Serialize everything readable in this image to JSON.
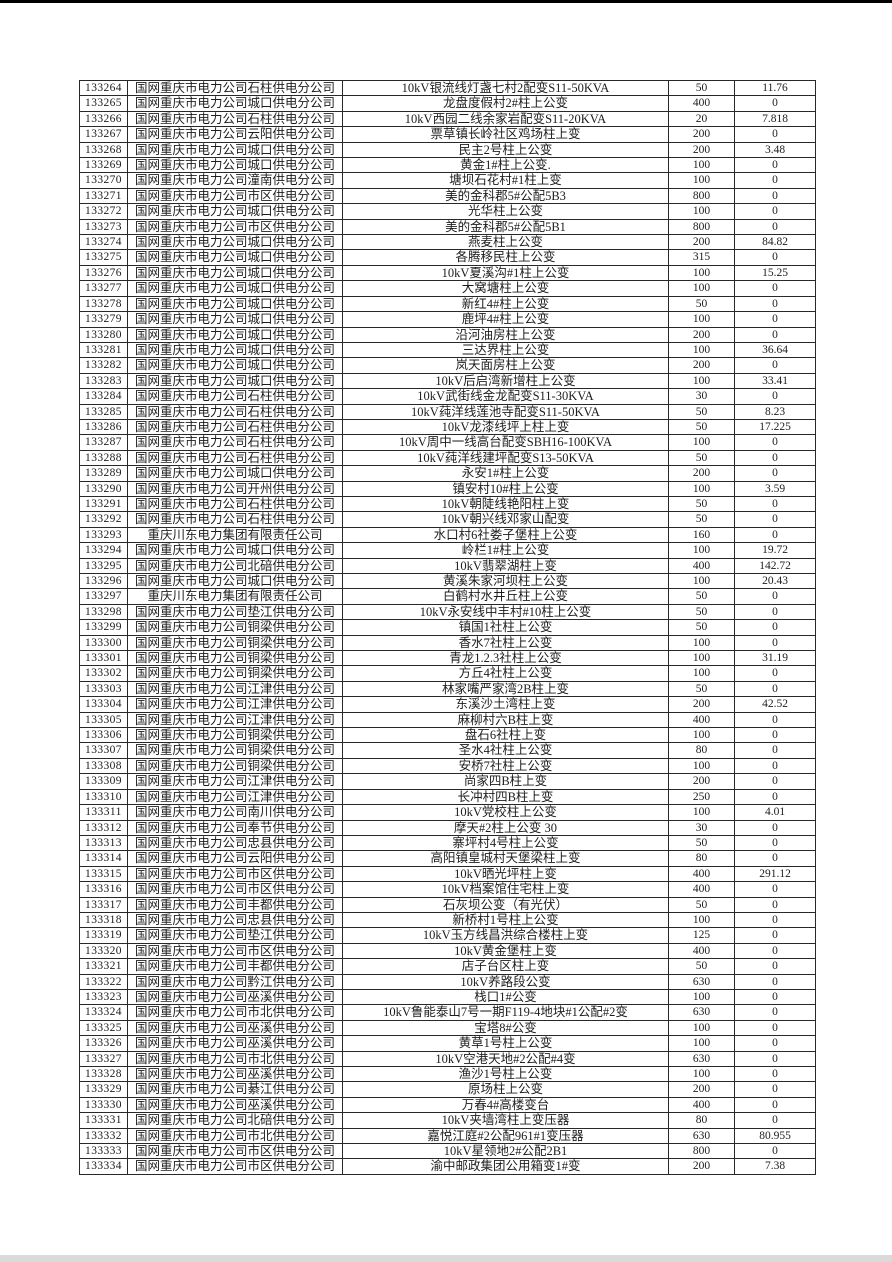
{
  "page": {
    "background": "#ffffff",
    "scan_top_edge_color": "#000000",
    "scan_bottom_strip_color": "#dadada",
    "text_color": "#1d1d1d",
    "grid_color": "#282828"
  },
  "table": {
    "columns": [
      {
        "key": "id",
        "name": "record-id-cell"
      },
      {
        "key": "company",
        "name": "company-name-cell"
      },
      {
        "key": "description",
        "name": "transformer-name-cell"
      },
      {
        "key": "capacity",
        "name": "capacity-kva-cell"
      },
      {
        "key": "value",
        "name": "reading-value-cell"
      }
    ],
    "rows": [
      [
        "133264",
        "国网重庆市电力公司石柱供电分公司",
        "10kV银流线灯盏七村2配变S11-50KVA",
        "50",
        "11.76"
      ],
      [
        "133265",
        "国网重庆市电力公司城口供电分公司",
        "龙盘度假村2#柱上公变",
        "400",
        "0"
      ],
      [
        "133266",
        "国网重庆市电力公司石柱供电分公司",
        "10kV西园二线余家岩配变S11-20KVA",
        "20",
        "7.818"
      ],
      [
        "133267",
        "国网重庆市电力公司云阳供电分公司",
        "票草镇长岭社区鸡场柱上变",
        "200",
        "0"
      ],
      [
        "133268",
        "国网重庆市电力公司城口供电分公司",
        "民主2号柱上公变",
        "200",
        "3.48"
      ],
      [
        "133269",
        "国网重庆市电力公司城口供电分公司",
        "黄金1#柱上公变.",
        "100",
        "0"
      ],
      [
        "133270",
        "国网重庆市电力公司潼南供电分公司",
        "塘坝石花村#1柱上变",
        "100",
        "0"
      ],
      [
        "133271",
        "国网重庆市电力公司市区供电分公司",
        "美的金科郡5#公配5B3",
        "800",
        "0"
      ],
      [
        "133272",
        "国网重庆市电力公司城口供电分公司",
        "光华柱上公变",
        "100",
        "0"
      ],
      [
        "133273",
        "国网重庆市电力公司市区供电分公司",
        "美的金科郡5#公配5B1",
        "800",
        "0"
      ],
      [
        "133274",
        "国网重庆市电力公司城口供电分公司",
        "燕麦柱上公变",
        "200",
        "84.82"
      ],
      [
        "133275",
        "国网重庆市电力公司城口供电分公司",
        "各腾移民柱上公变",
        "315",
        "0"
      ],
      [
        "133276",
        "国网重庆市电力公司城口供电分公司",
        "10kV夏溪沟#1柱上公变",
        "100",
        "15.25"
      ],
      [
        "133277",
        "国网重庆市电力公司城口供电分公司",
        "大窝塘柱上公变",
        "100",
        "0"
      ],
      [
        "133278",
        "国网重庆市电力公司城口供电分公司",
        "新红4#柱上公变",
        "50",
        "0"
      ],
      [
        "133279",
        "国网重庆市电力公司城口供电分公司",
        "鹿坪4#柱上公变",
        "100",
        "0"
      ],
      [
        "133280",
        "国网重庆市电力公司城口供电分公司",
        "沿河油房柱上公变",
        "200",
        "0"
      ],
      [
        "133281",
        "国网重庆市电力公司城口供电分公司",
        "三达界柱上公变",
        "100",
        "36.64"
      ],
      [
        "133282",
        "国网重庆市电力公司城口供电分公司",
        "岚天面房柱上公变",
        "200",
        "0"
      ],
      [
        "133283",
        "国网重庆市电力公司城口供电分公司",
        "10kV后启湾新增柱上公变",
        "100",
        "33.41"
      ],
      [
        "133284",
        "国网重庆市电力公司石柱供电分公司",
        "10kV武街线金龙配变S11-30KVA",
        "30",
        "0"
      ],
      [
        "133285",
        "国网重庆市电力公司石柱供电分公司",
        "10kV莼洋线莲池寺配变S11-50KVA",
        "50",
        "8.23"
      ],
      [
        "133286",
        "国网重庆市电力公司石柱供电分公司",
        "10kV龙漆线坪上柱上变",
        "50",
        "17.225"
      ],
      [
        "133287",
        "国网重庆市电力公司石柱供电分公司",
        "10kV周中一线高台配变SBH16-100KVA",
        "100",
        "0"
      ],
      [
        "133288",
        "国网重庆市电力公司石柱供电分公司",
        "10kV莼洋线建坪配变S13-50KVA",
        "50",
        "0"
      ],
      [
        "133289",
        "国网重庆市电力公司城口供电分公司",
        "永安1#柱上公变",
        "200",
        "0"
      ],
      [
        "133290",
        "国网重庆市电力公司开州供电分公司",
        "镇安村10#柱上公变",
        "100",
        "3.59"
      ],
      [
        "133291",
        "国网重庆市电力公司石柱供电分公司",
        "10kV朝陡线艳阳柱上变",
        "50",
        "0"
      ],
      [
        "133292",
        "国网重庆市电力公司石柱供电分公司",
        "10kV朝兴线邓家山配变",
        "50",
        "0"
      ],
      [
        "133293",
        "重庆川东电力集团有限责任公司",
        "水口村6社娄子堡柱上公变",
        "160",
        "0"
      ],
      [
        "133294",
        "国网重庆市电力公司城口供电分公司",
        "岭栏1#柱上公变",
        "100",
        "19.72"
      ],
      [
        "133295",
        "国网重庆市电力公司北碚供电分公司",
        "10kV翡翠湖柱上变",
        "400",
        "142.72"
      ],
      [
        "133296",
        "国网重庆市电力公司城口供电分公司",
        "黄溪朱家河坝柱上公变",
        "100",
        "20.43"
      ],
      [
        "133297",
        "重庆川东电力集团有限责任公司",
        "白鹤村水井丘柱上公变",
        "50",
        "0"
      ],
      [
        "133298",
        "国网重庆市电力公司垫江供电分公司",
        "10kV永安线中丰村#10柱上公变",
        "50",
        "0"
      ],
      [
        "133299",
        "国网重庆市电力公司铜梁供电分公司",
        "镇国1社柱上公变",
        "50",
        "0"
      ],
      [
        "133300",
        "国网重庆市电力公司铜梁供电分公司",
        "香水7社柱上公变",
        "100",
        "0"
      ],
      [
        "133301",
        "国网重庆市电力公司铜梁供电分公司",
        "青龙1.2.3社柱上公变",
        "100",
        "31.19"
      ],
      [
        "133302",
        "国网重庆市电力公司铜梁供电分公司",
        "方丘4社柱上公变",
        "100",
        "0"
      ],
      [
        "133303",
        "国网重庆市电力公司江津供电分公司",
        "林家嘴严家湾2B柱上变",
        "50",
        "0"
      ],
      [
        "133304",
        "国网重庆市电力公司江津供电分公司",
        "东溪沙土湾柱上变",
        "200",
        "42.52"
      ],
      [
        "133305",
        "国网重庆市电力公司江津供电分公司",
        "麻柳村六B柱上变",
        "400",
        "0"
      ],
      [
        "133306",
        "国网重庆市电力公司铜梁供电分公司",
        "盘石6社柱上变",
        "100",
        "0"
      ],
      [
        "133307",
        "国网重庆市电力公司铜梁供电分公司",
        "圣水4社柱上公变",
        "80",
        "0"
      ],
      [
        "133308",
        "国网重庆市电力公司铜梁供电分公司",
        "安桥7社柱上公变",
        "100",
        "0"
      ],
      [
        "133309",
        "国网重庆市电力公司江津供电分公司",
        "尚家四B柱上变",
        "200",
        "0"
      ],
      [
        "133310",
        "国网重庆市电力公司江津供电分公司",
        "长冲村四B柱上变",
        "250",
        "0"
      ],
      [
        "133311",
        "国网重庆市电力公司南川供电分公司",
        "10kV党校柱上公变",
        "100",
        "4.01"
      ],
      [
        "133312",
        "国网重庆市电力公司奉节供电分公司",
        "摩天#2柱上公变 30",
        "30",
        "0"
      ],
      [
        "133313",
        "国网重庆市电力公司忠县供电分公司",
        "寨坪村4号柱上公变",
        "50",
        "0"
      ],
      [
        "133314",
        "国网重庆市电力公司云阳供电分公司",
        "高阳镇皇城村天堡梁柱上变",
        "80",
        "0"
      ],
      [
        "133315",
        "国网重庆市电力公司市区供电分公司",
        "10kV晒光坪柱上变",
        "400",
        "291.12"
      ],
      [
        "133316",
        "国网重庆市电力公司市区供电分公司",
        "10kV档案馆住宅柱上变",
        "400",
        "0"
      ],
      [
        "133317",
        "国网重庆市电力公司丰都供电分公司",
        "石灰坝公变（有光伏）",
        "50",
        "0"
      ],
      [
        "133318",
        "国网重庆市电力公司忠县供电分公司",
        "新桥村1号柱上公变",
        "100",
        "0"
      ],
      [
        "133319",
        "国网重庆市电力公司垫江供电分公司",
        "10kV玉方线昌洪综合楼柱上变",
        "125",
        "0"
      ],
      [
        "133320",
        "国网重庆市电力公司市区供电分公司",
        "10kV黄金堡柱上变",
        "400",
        "0"
      ],
      [
        "133321",
        "国网重庆市电力公司丰都供电分公司",
        "店子台区柱上变",
        "50",
        "0"
      ],
      [
        "133322",
        "国网重庆市电力公司黔江供电分公司",
        "10kV养路段公变",
        "630",
        "0"
      ],
      [
        "133323",
        "国网重庆市电力公司巫溪供电分公司",
        "栈口1#公变",
        "100",
        "0"
      ],
      [
        "133324",
        "国网重庆市电力公司市北供电分公司",
        "10kV鲁能泰山7号一期F119-4地块#1公配#2变",
        "630",
        "0"
      ],
      [
        "133325",
        "国网重庆市电力公司巫溪供电分公司",
        "宝塔8#公变",
        "100",
        "0"
      ],
      [
        "133326",
        "国网重庆市电力公司巫溪供电分公司",
        "黄草1号柱上公变",
        "100",
        "0"
      ],
      [
        "133327",
        "国网重庆市电力公司市北供电分公司",
        "10kV空港天地#2公配#4变",
        "630",
        "0"
      ],
      [
        "133328",
        "国网重庆市电力公司巫溪供电分公司",
        "渔沙1号柱上公变",
        "100",
        "0"
      ],
      [
        "133329",
        "国网重庆市电力公司綦江供电分公司",
        "原场柱上公变",
        "200",
        "0"
      ],
      [
        "133330",
        "国网重庆市电力公司巫溪供电分公司",
        "万春4#高楼变台",
        "400",
        "0"
      ],
      [
        "133331",
        "国网重庆市电力公司北碚供电分公司",
        "10kV夹墙湾柱上变压器",
        "80",
        "0"
      ],
      [
        "133332",
        "国网重庆市电力公司市北供电分公司",
        "嘉悦江庭#2公配961#1变压器",
        "630",
        "80.955"
      ],
      [
        "133333",
        "国网重庆市电力公司市区供电分公司",
        "10kV星领地2#公配2B1",
        "800",
        "0"
      ],
      [
        "133334",
        "国网重庆市电力公司市区供电分公司",
        "渝中邮政集团公用箱变1#变",
        "200",
        "7.38"
      ]
    ]
  }
}
